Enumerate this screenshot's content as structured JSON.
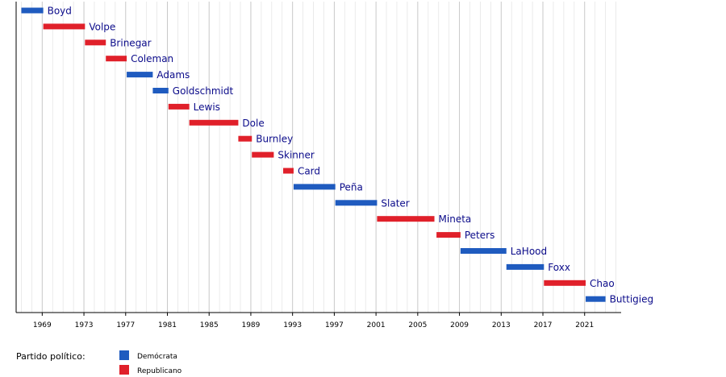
{
  "chart_data": {
    "type": "bar",
    "orientation": "horizontal-timeline",
    "x_range": [
      1966.5,
      2024.5
    ],
    "x_ticks": [
      "1969",
      "1973",
      "1977",
      "1981",
      "1985",
      "1989",
      "1993",
      "1997",
      "2001",
      "2005",
      "2009",
      "2013",
      "2017",
      "2021"
    ],
    "grid": true,
    "series": [
      {
        "name": "Demócrata",
        "color": "#1f5bbf"
      },
      {
        "name": "Republicano",
        "color": "#e0202a"
      }
    ],
    "bars": [
      {
        "label": "Boyd",
        "party": "Demócrata",
        "start": 1967.0,
        "end": 1969.1
      },
      {
        "label": "Volpe",
        "party": "Republicano",
        "start": 1969.1,
        "end": 1973.1
      },
      {
        "label": "Brinegar",
        "party": "Republicano",
        "start": 1973.1,
        "end": 1975.1
      },
      {
        "label": "Coleman",
        "party": "Republicano",
        "start": 1975.1,
        "end": 1977.1
      },
      {
        "label": "Adams",
        "party": "Demócrata",
        "start": 1977.1,
        "end": 1979.6
      },
      {
        "label": "Goldschmidt",
        "party": "Demócrata",
        "start": 1979.6,
        "end": 1981.1
      },
      {
        "label": "Lewis",
        "party": "Republicano",
        "start": 1981.1,
        "end": 1983.1
      },
      {
        "label": "Dole",
        "party": "Republicano",
        "start": 1983.1,
        "end": 1987.8
      },
      {
        "label": "Burnley",
        "party": "Republicano",
        "start": 1987.8,
        "end": 1989.1
      },
      {
        "label": "Skinner",
        "party": "Republicano",
        "start": 1989.1,
        "end": 1991.2
      },
      {
        "label": "Card",
        "party": "Republicano",
        "start": 1992.1,
        "end": 1993.1
      },
      {
        "label": "Peña",
        "party": "Demócrata",
        "start": 1993.1,
        "end": 1997.1
      },
      {
        "label": "Slater",
        "party": "Demócrata",
        "start": 1997.1,
        "end": 2001.1
      },
      {
        "label": "Mineta",
        "party": "Republicano",
        "start": 2001.1,
        "end": 2006.6
      },
      {
        "label": "Peters",
        "party": "Republicano",
        "start": 2006.8,
        "end": 2009.1
      },
      {
        "label": "LaHood",
        "party": "Demócrata",
        "start": 2009.1,
        "end": 2013.5
      },
      {
        "label": "Foxx",
        "party": "Demócrata",
        "start": 2013.5,
        "end": 2017.1
      },
      {
        "label": "Chao",
        "party": "Republicano",
        "start": 2017.1,
        "end": 2021.1
      },
      {
        "label": "Buttigieg",
        "party": "Demócrata",
        "start": 2021.1,
        "end": 2023.0
      }
    ],
    "legend": {
      "title": "Partido político:",
      "placement": "bottom-left",
      "items": [
        {
          "label": "Demócrata",
          "color": "#1f5bbf"
        },
        {
          "label": "Republicano",
          "color": "#e0202a"
        }
      ]
    },
    "title": "",
    "xlabel": "",
    "ylabel": ""
  }
}
